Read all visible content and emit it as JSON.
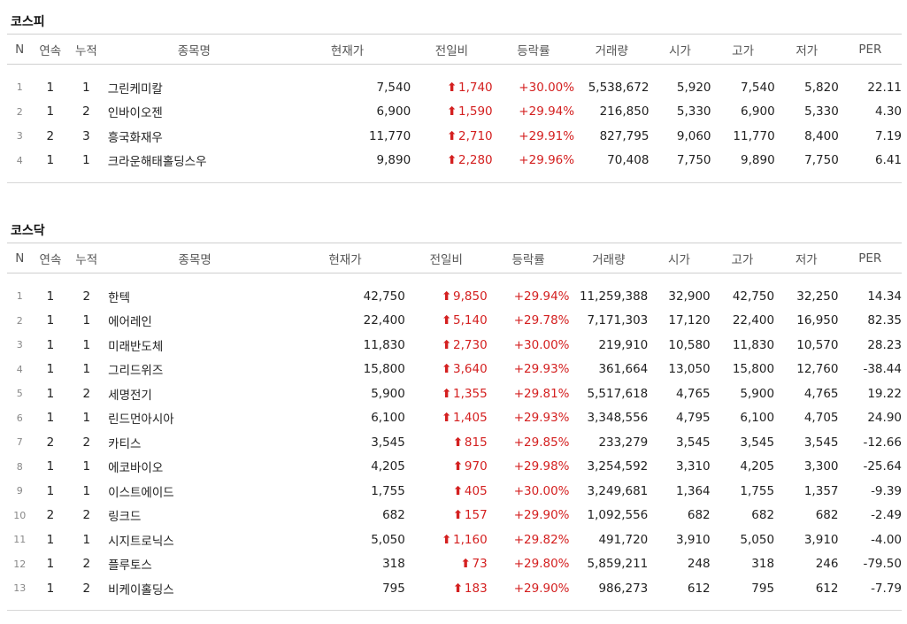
{
  "headers": [
    "N",
    "연속",
    "누적",
    "종목명",
    "현재가",
    "전일비",
    "등락률",
    "거래량",
    "시가",
    "고가",
    "저가",
    "PER"
  ],
  "colors": {
    "up": "#d42020",
    "header_text": "#555555"
  },
  "up_icon": "up-arrow-icon",
  "sections": [
    {
      "title": "코스피",
      "rows": [
        {
          "n": "1",
          "streak": "1",
          "cum": "1",
          "name": "그린케미칼",
          "price": "7,540",
          "change": "1,740",
          "rate": "+30.00%",
          "volume": "5,538,672",
          "open": "5,920",
          "high": "7,540",
          "low": "5,820",
          "per": "22.11"
        },
        {
          "n": "2",
          "streak": "1",
          "cum": "2",
          "name": "인바이오젠",
          "price": "6,900",
          "change": "1,590",
          "rate": "+29.94%",
          "volume": "216,850",
          "open": "5,330",
          "high": "6,900",
          "low": "5,330",
          "per": "4.30"
        },
        {
          "n": "3",
          "streak": "2",
          "cum": "3",
          "name": "흥국화재우",
          "price": "11,770",
          "change": "2,710",
          "rate": "+29.91%",
          "volume": "827,795",
          "open": "9,060",
          "high": "11,770",
          "low": "8,400",
          "per": "7.19"
        },
        {
          "n": "4",
          "streak": "1",
          "cum": "1",
          "name": "크라운해태홀딩스우",
          "price": "9,890",
          "change": "2,280",
          "rate": "+29.96%",
          "volume": "70,408",
          "open": "7,750",
          "high": "9,890",
          "low": "7,750",
          "per": "6.41"
        }
      ]
    },
    {
      "title": "코스닥",
      "rows": [
        {
          "n": "1",
          "streak": "1",
          "cum": "2",
          "name": "한텍",
          "price": "42,750",
          "change": "9,850",
          "rate": "+29.94%",
          "volume": "11,259,388",
          "open": "32,900",
          "high": "42,750",
          "low": "32,250",
          "per": "14.34"
        },
        {
          "n": "2",
          "streak": "1",
          "cum": "1",
          "name": "에어레인",
          "price": "22,400",
          "change": "5,140",
          "rate": "+29.78%",
          "volume": "7,171,303",
          "open": "17,120",
          "high": "22,400",
          "low": "16,950",
          "per": "82.35"
        },
        {
          "n": "3",
          "streak": "1",
          "cum": "1",
          "name": "미래반도체",
          "price": "11,830",
          "change": "2,730",
          "rate": "+30.00%",
          "volume": "219,910",
          "open": "10,580",
          "high": "11,830",
          "low": "10,570",
          "per": "28.23"
        },
        {
          "n": "4",
          "streak": "1",
          "cum": "1",
          "name": "그리드위즈",
          "price": "15,800",
          "change": "3,640",
          "rate": "+29.93%",
          "volume": "361,664",
          "open": "13,050",
          "high": "15,800",
          "low": "12,760",
          "per": "-38.44"
        },
        {
          "n": "5",
          "streak": "1",
          "cum": "2",
          "name": "세명전기",
          "price": "5,900",
          "change": "1,355",
          "rate": "+29.81%",
          "volume": "5,517,618",
          "open": "4,765",
          "high": "5,900",
          "low": "4,765",
          "per": "19.22"
        },
        {
          "n": "6",
          "streak": "1",
          "cum": "1",
          "name": "린드먼아시아",
          "price": "6,100",
          "change": "1,405",
          "rate": "+29.93%",
          "volume": "3,348,556",
          "open": "4,795",
          "high": "6,100",
          "low": "4,705",
          "per": "24.90"
        },
        {
          "n": "7",
          "streak": "2",
          "cum": "2",
          "name": "카티스",
          "price": "3,545",
          "change": "815",
          "rate": "+29.85%",
          "volume": "233,279",
          "open": "3,545",
          "high": "3,545",
          "low": "3,545",
          "per": "-12.66"
        },
        {
          "n": "8",
          "streak": "1",
          "cum": "1",
          "name": "에코바이오",
          "price": "4,205",
          "change": "970",
          "rate": "+29.98%",
          "volume": "3,254,592",
          "open": "3,310",
          "high": "4,205",
          "low": "3,300",
          "per": "-25.64"
        },
        {
          "n": "9",
          "streak": "1",
          "cum": "1",
          "name": "이스트에이드",
          "price": "1,755",
          "change": "405",
          "rate": "+30.00%",
          "volume": "3,249,681",
          "open": "1,364",
          "high": "1,755",
          "low": "1,357",
          "per": "-9.39"
        },
        {
          "n": "10",
          "streak": "2",
          "cum": "2",
          "name": "링크드",
          "price": "682",
          "change": "157",
          "rate": "+29.90%",
          "volume": "1,092,556",
          "open": "682",
          "high": "682",
          "low": "682",
          "per": "-2.49"
        },
        {
          "n": "11",
          "streak": "1",
          "cum": "1",
          "name": "시지트로닉스",
          "price": "5,050",
          "change": "1,160",
          "rate": "+29.82%",
          "volume": "491,720",
          "open": "3,910",
          "high": "5,050",
          "low": "3,910",
          "per": "-4.00"
        },
        {
          "n": "12",
          "streak": "1",
          "cum": "2",
          "name": "플루토스",
          "price": "318",
          "change": "73",
          "rate": "+29.80%",
          "volume": "5,859,211",
          "open": "248",
          "high": "318",
          "low": "246",
          "per": "-79.50"
        },
        {
          "n": "13",
          "streak": "1",
          "cum": "2",
          "name": "비케이홀딩스",
          "price": "795",
          "change": "183",
          "rate": "+29.90%",
          "volume": "986,273",
          "open": "612",
          "high": "795",
          "low": "612",
          "per": "-7.79"
        }
      ]
    }
  ]
}
